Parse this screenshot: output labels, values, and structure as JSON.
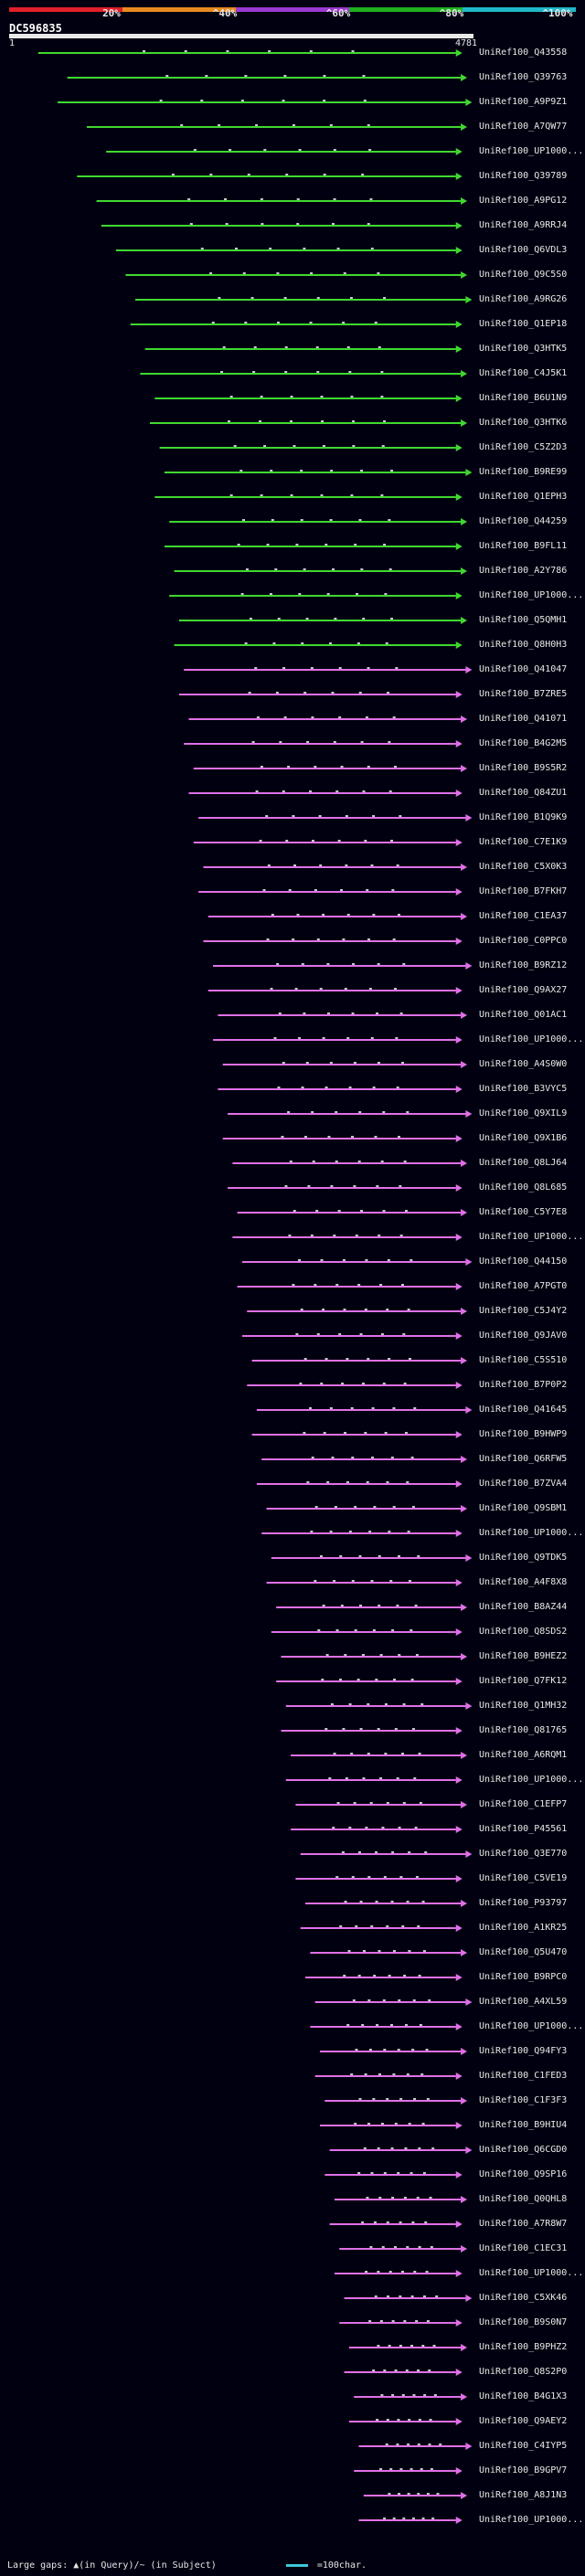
{
  "title": "DC596835",
  "colors": {
    "background": "#000010",
    "scale": [
      "#e0202a",
      "#e88a20",
      "#9a3ad0",
      "#20b020",
      "#20b8c8"
    ],
    "hit_high": "#40d830",
    "hit_low": "#e070e8",
    "gap_small": "#c8c8c8",
    "legend_line": "#3cc8d8"
  },
  "chart_data": {
    "type": "alignment-overview",
    "query": {
      "name": "DC596835",
      "start": 1,
      "end": 4781
    },
    "identity_scale": [
      "20%",
      "^40%",
      "^60%",
      "^80%",
      "^100%"
    ],
    "hits": [
      {
        "label": "UniRef100_Q43558",
        "identity": 74,
        "start": 300,
        "end": 4600
      },
      {
        "label": "UniRef100_Q39763",
        "identity": 72,
        "start": 600,
        "end": 4650
      },
      {
        "label": "UniRef100_A9P9Z1",
        "identity": 71,
        "start": 500,
        "end": 4700
      },
      {
        "label": "UniRef100_A7QW77",
        "identity": 70,
        "start": 800,
        "end": 4650
      },
      {
        "label": "UniRef100_UP1000...",
        "identity": 70,
        "start": 1000,
        "end": 4600
      },
      {
        "label": "UniRef100_Q39789",
        "identity": 69,
        "start": 700,
        "end": 4600
      },
      {
        "label": "UniRef100_A9PG12",
        "identity": 68,
        "start": 900,
        "end": 4650
      },
      {
        "label": "UniRef100_A9RRJ4",
        "identity": 68,
        "start": 950,
        "end": 4600
      },
      {
        "label": "UniRef100_Q6VDL3",
        "identity": 67,
        "start": 1100,
        "end": 4600
      },
      {
        "label": "UniRef100_Q9C5S0",
        "identity": 67,
        "start": 1200,
        "end": 4650
      },
      {
        "label": "UniRef100_A9RG26",
        "identity": 66,
        "start": 1300,
        "end": 4700
      },
      {
        "label": "UniRef100_Q1EP18",
        "identity": 66,
        "start": 1250,
        "end": 4600
      },
      {
        "label": "UniRef100_Q3HTK5",
        "identity": 65,
        "start": 1400,
        "end": 4600
      },
      {
        "label": "UniRef100_C4J5K1",
        "identity": 65,
        "start": 1350,
        "end": 4650
      },
      {
        "label": "UniRef100_B6U1N9",
        "identity": 64,
        "start": 1500,
        "end": 4600
      },
      {
        "label": "UniRef100_Q3HTK6",
        "identity": 64,
        "start": 1450,
        "end": 4650
      },
      {
        "label": "UniRef100_C5Z2D3",
        "identity": 63,
        "start": 1550,
        "end": 4600
      },
      {
        "label": "UniRef100_B9RE99",
        "identity": 63,
        "start": 1600,
        "end": 4700
      },
      {
        "label": "UniRef100_Q1EPH3",
        "identity": 62,
        "start": 1500,
        "end": 4600
      },
      {
        "label": "UniRef100_Q44259",
        "identity": 62,
        "start": 1650,
        "end": 4650
      },
      {
        "label": "UniRef100_B9FL11",
        "identity": 61,
        "start": 1600,
        "end": 4600
      },
      {
        "label": "UniRef100_A2Y786",
        "identity": 61,
        "start": 1700,
        "end": 4650
      },
      {
        "label": "UniRef100_UP1000...",
        "identity": 60,
        "start": 1650,
        "end": 4600
      },
      {
        "label": "UniRef100_Q5QMH1",
        "identity": 60,
        "start": 1750,
        "end": 4650
      },
      {
        "label": "UniRef100_Q8H0H3",
        "identity": 60,
        "start": 1700,
        "end": 4600
      },
      {
        "label": "UniRef100_Q41047",
        "identity": 59,
        "start": 1800,
        "end": 4700
      },
      {
        "label": "UniRef100_B7ZRE5",
        "identity": 59,
        "start": 1750,
        "end": 4600
      },
      {
        "label": "UniRef100_Q41071",
        "identity": 58,
        "start": 1850,
        "end": 4650
      },
      {
        "label": "UniRef100_B4G2M5",
        "identity": 58,
        "start": 1800,
        "end": 4600
      },
      {
        "label": "UniRef100_B9S5R2",
        "identity": 57,
        "start": 1900,
        "end": 4650
      },
      {
        "label": "UniRef100_Q84ZU1",
        "identity": 57,
        "start": 1850,
        "end": 4600
      },
      {
        "label": "UniRef100_B1Q9K9",
        "identity": 56,
        "start": 1950,
        "end": 4700
      },
      {
        "label": "UniRef100_C7E1K9",
        "identity": 56,
        "start": 1900,
        "end": 4600
      },
      {
        "label": "UniRef100_C5X0K3",
        "identity": 55,
        "start": 2000,
        "end": 4650
      },
      {
        "label": "UniRef100_B7FKH7",
        "identity": 55,
        "start": 1950,
        "end": 4600
      },
      {
        "label": "UniRef100_C1EA37",
        "identity": 54,
        "start": 2050,
        "end": 4650
      },
      {
        "label": "UniRef100_C0PPC0",
        "identity": 54,
        "start": 2000,
        "end": 4600
      },
      {
        "label": "UniRef100_B9RZ12",
        "identity": 53,
        "start": 2100,
        "end": 4700
      },
      {
        "label": "UniRef100_Q9AX27",
        "identity": 53,
        "start": 2050,
        "end": 4600
      },
      {
        "label": "UniRef100_Q01AC1",
        "identity": 52,
        "start": 2150,
        "end": 4650
      },
      {
        "label": "UniRef100_UP1000...",
        "identity": 52,
        "start": 2100,
        "end": 4600
      },
      {
        "label": "UniRef100_A4S0W0",
        "identity": 51,
        "start": 2200,
        "end": 4650
      },
      {
        "label": "UniRef100_B3VYC5",
        "identity": 51,
        "start": 2150,
        "end": 4600
      },
      {
        "label": "UniRef100_Q9XIL9",
        "identity": 50,
        "start": 2250,
        "end": 4700
      },
      {
        "label": "UniRef100_Q9X1B6",
        "identity": 50,
        "start": 2200,
        "end": 4600
      },
      {
        "label": "UniRef100_Q8LJ64",
        "identity": 49,
        "start": 2300,
        "end": 4650
      },
      {
        "label": "UniRef100_Q8L685",
        "identity": 49,
        "start": 2250,
        "end": 4600
      },
      {
        "label": "UniRef100_C5Y7E8",
        "identity": 48,
        "start": 2350,
        "end": 4650
      },
      {
        "label": "UniRef100_UP1000...",
        "identity": 48,
        "start": 2300,
        "end": 4600
      },
      {
        "label": "UniRef100_Q44150",
        "identity": 47,
        "start": 2400,
        "end": 4700
      },
      {
        "label": "UniRef100_A7PGT0",
        "identity": 47,
        "start": 2350,
        "end": 4600
      },
      {
        "label": "UniRef100_C5J4Y2",
        "identity": 46,
        "start": 2450,
        "end": 4650
      },
      {
        "label": "UniRef100_Q9JAV0",
        "identity": 46,
        "start": 2400,
        "end": 4600
      },
      {
        "label": "UniRef100_C5S510",
        "identity": 45,
        "start": 2500,
        "end": 4650
      },
      {
        "label": "UniRef100_B7P0P2",
        "identity": 45,
        "start": 2450,
        "end": 4600
      },
      {
        "label": "UniRef100_Q41645",
        "identity": 44,
        "start": 2550,
        "end": 4700
      },
      {
        "label": "UniRef100_B9HWP9",
        "identity": 44,
        "start": 2500,
        "end": 4600
      },
      {
        "label": "UniRef100_Q6RFW5",
        "identity": 43,
        "start": 2600,
        "end": 4650
      },
      {
        "label": "UniRef100_B7ZVA4",
        "identity": 43,
        "start": 2550,
        "end": 4600
      },
      {
        "label": "UniRef100_Q9SBM1",
        "identity": 42,
        "start": 2650,
        "end": 4650
      },
      {
        "label": "UniRef100_UP1000...",
        "identity": 42,
        "start": 2600,
        "end": 4600
      },
      {
        "label": "UniRef100_Q9TDK5",
        "identity": 41,
        "start": 2700,
        "end": 4700
      },
      {
        "label": "UniRef100_A4F8X8",
        "identity": 41,
        "start": 2650,
        "end": 4600
      },
      {
        "label": "UniRef100_B8AZ44",
        "identity": 40,
        "start": 2750,
        "end": 4650
      },
      {
        "label": "UniRef100_Q8SDS2",
        "identity": 40,
        "start": 2700,
        "end": 4600
      },
      {
        "label": "UniRef100_B9HEZ2",
        "identity": 39,
        "start": 2800,
        "end": 4650
      },
      {
        "label": "UniRef100_Q7FK12",
        "identity": 39,
        "start": 2750,
        "end": 4600
      },
      {
        "label": "UniRef100_Q1MH32",
        "identity": 38,
        "start": 2850,
        "end": 4700
      },
      {
        "label": "UniRef100_Q81765",
        "identity": 38,
        "start": 2800,
        "end": 4600
      },
      {
        "label": "UniRef100_A6RQM1",
        "identity": 37,
        "start": 2900,
        "end": 4650
      },
      {
        "label": "UniRef100_UP1000...",
        "identity": 37,
        "start": 2850,
        "end": 4600
      },
      {
        "label": "UniRef100_C1EFP7",
        "identity": 36,
        "start": 2950,
        "end": 4650
      },
      {
        "label": "UniRef100_P45561",
        "identity": 36,
        "start": 2900,
        "end": 4600
      },
      {
        "label": "UniRef100_Q3E770",
        "identity": 35,
        "start": 3000,
        "end": 4700
      },
      {
        "label": "UniRef100_C5VE19",
        "identity": 35,
        "start": 2950,
        "end": 4600
      },
      {
        "label": "UniRef100_P93797",
        "identity": 34,
        "start": 3050,
        "end": 4650
      },
      {
        "label": "UniRef100_A1KR25",
        "identity": 34,
        "start": 3000,
        "end": 4600
      },
      {
        "label": "UniRef100_Q5U470",
        "identity": 33,
        "start": 3100,
        "end": 4650
      },
      {
        "label": "UniRef100_B9RPC0",
        "identity": 33,
        "start": 3050,
        "end": 4600
      },
      {
        "label": "UniRef100_A4XL59",
        "identity": 32,
        "start": 3150,
        "end": 4700
      },
      {
        "label": "UniRef100_UP1000...",
        "identity": 32,
        "start": 3100,
        "end": 4600
      },
      {
        "label": "UniRef100_Q94FY3",
        "identity": 31,
        "start": 3200,
        "end": 4650
      },
      {
        "label": "UniRef100_C1FED3",
        "identity": 31,
        "start": 3150,
        "end": 4600
      },
      {
        "label": "UniRef100_C1F3F3",
        "identity": 30,
        "start": 3250,
        "end": 4650
      },
      {
        "label": "UniRef100_B9HIU4",
        "identity": 30,
        "start": 3200,
        "end": 4600
      },
      {
        "label": "UniRef100_Q6CGD0",
        "identity": 29,
        "start": 3300,
        "end": 4700
      },
      {
        "label": "UniRef100_Q9SP16",
        "identity": 29,
        "start": 3250,
        "end": 4600
      },
      {
        "label": "UniRef100_Q0QHL8",
        "identity": 28,
        "start": 3350,
        "end": 4650
      },
      {
        "label": "UniRef100_A7R8W7",
        "identity": 28,
        "start": 3300,
        "end": 4600
      },
      {
        "label": "UniRef100_C1EC31",
        "identity": 27,
        "start": 3400,
        "end": 4650
      },
      {
        "label": "UniRef100_UP1000...",
        "identity": 27,
        "start": 3350,
        "end": 4600
      },
      {
        "label": "UniRef100_C5XK46",
        "identity": 26,
        "start": 3450,
        "end": 4700
      },
      {
        "label": "UniRef100_B9S0N7",
        "identity": 26,
        "start": 3400,
        "end": 4600
      },
      {
        "label": "UniRef100_B9PHZ2",
        "identity": 25,
        "start": 3500,
        "end": 4650
      },
      {
        "label": "UniRef100_Q8S2P0",
        "identity": 25,
        "start": 3450,
        "end": 4600
      },
      {
        "label": "UniRef100_B4G1X3",
        "identity": 24,
        "start": 3550,
        "end": 4650
      },
      {
        "label": "UniRef100_Q9AEY2",
        "identity": 24,
        "start": 3500,
        "end": 4600
      },
      {
        "label": "UniRef100_C4IYP5",
        "identity": 23,
        "start": 3600,
        "end": 4700
      },
      {
        "label": "UniRef100_B9GPV7",
        "identity": 23,
        "start": 3550,
        "end": 4600
      },
      {
        "label": "UniRef100_A8J1N3",
        "identity": 22,
        "start": 3650,
        "end": 4650
      },
      {
        "label": "UniRef100_UP1000...",
        "identity": 22,
        "start": 3600,
        "end": 4600
      }
    ]
  },
  "footer": {
    "gaps_text": "Large gaps: ▲(in Query)/~ (in Subject)",
    "legend_text": "=100char."
  }
}
